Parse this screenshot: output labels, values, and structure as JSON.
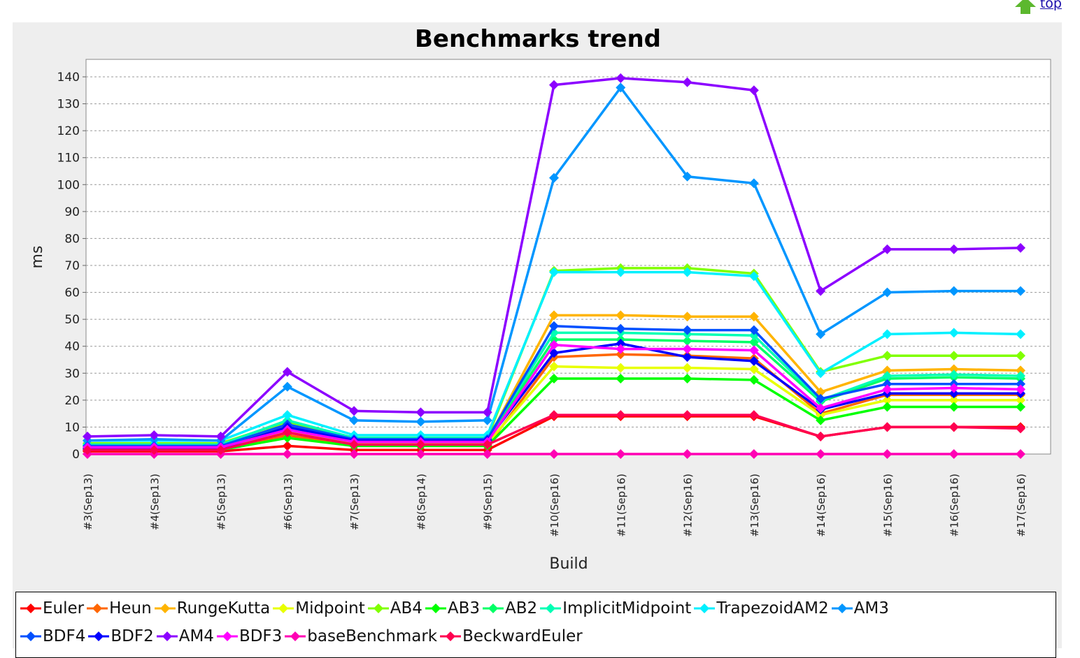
{
  "page": {
    "top_link": "top"
  },
  "chart_data": {
    "type": "line",
    "title": "Benchmarks trend",
    "xlabel": "Build",
    "ylabel": "ms",
    "ylim": [
      0,
      140
    ],
    "yticks": [
      0,
      10,
      20,
      30,
      40,
      50,
      60,
      70,
      80,
      90,
      100,
      110,
      120,
      130,
      140
    ],
    "grid": true,
    "legend_position": "bottom",
    "categories": [
      "#3(Sep13)",
      "#4(Sep13)",
      "#5(Sep13)",
      "#6(Sep13)",
      "#7(Sep13)",
      "#8(Sep14)",
      "#9(Sep15)",
      "#10(Sep16)",
      "#11(Sep16)",
      "#12(Sep16)",
      "#13(Sep16)",
      "#14(Sep16)",
      "#15(Sep16)",
      "#16(Sep16)",
      "#17(Sep16)"
    ],
    "series": [
      {
        "name": "Euler",
        "color": "#ff0000",
        "values": [
          1,
          1,
          1,
          3,
          1.5,
          1.5,
          1.5,
          14,
          14,
          14,
          14,
          6.5,
          10,
          10,
          10
        ]
      },
      {
        "name": "Heun",
        "color": "#ff6600",
        "values": [
          1.5,
          1.5,
          1.5,
          7,
          3,
          3,
          3,
          36,
          37,
          36.5,
          35.5,
          15,
          22,
          22,
          22
        ]
      },
      {
        "name": "RungeKutta",
        "color": "#ffb400",
        "values": [
          2.5,
          2.5,
          2.5,
          10,
          5,
          5,
          5,
          51.5,
          51.5,
          51,
          51,
          23,
          31,
          31.5,
          31
        ]
      },
      {
        "name": "Midpoint",
        "color": "#e8ff00",
        "values": [
          2,
          2,
          2,
          9,
          4,
          4,
          4,
          32.5,
          32,
          32,
          31.5,
          14.5,
          20,
          20,
          20
        ]
      },
      {
        "name": "AB4",
        "color": "#80ff00",
        "values": [
          4,
          4,
          4,
          12,
          6,
          6,
          6,
          68,
          69,
          69,
          67,
          30.5,
          36.5,
          36.5,
          36.5
        ]
      },
      {
        "name": "AB3",
        "color": "#00ff00",
        "values": [
          1.5,
          1.5,
          1.5,
          6,
          3,
          3,
          3,
          28,
          28,
          28,
          27.5,
          12.5,
          17.5,
          17.5,
          17.5
        ]
      },
      {
        "name": "AB2",
        "color": "#00ff66",
        "values": [
          3,
          3,
          3,
          11,
          5.5,
          5.5,
          5.5,
          42.5,
          42.5,
          42,
          41.5,
          19.5,
          28,
          28.5,
          28
        ]
      },
      {
        "name": "ImplicitMidpoint",
        "color": "#00ffb4",
        "values": [
          3.5,
          3.5,
          3.5,
          12.5,
          6,
          6,
          6,
          45,
          45,
          44.5,
          44,
          20,
          29,
          29.5,
          29
        ]
      },
      {
        "name": "TrapezoidAM2",
        "color": "#00f0ff",
        "values": [
          5,
          5,
          5,
          14.5,
          7,
          7,
          7,
          67.5,
          67.5,
          67.5,
          66,
          30,
          44.5,
          45,
          44.5
        ]
      },
      {
        "name": "AM3",
        "color": "#0096ff",
        "values": [
          5,
          5.5,
          5,
          25,
          12.5,
          12,
          12.5,
          102.5,
          136,
          103,
          100.5,
          44.5,
          60,
          60.5,
          60.5
        ]
      },
      {
        "name": "BDF4",
        "color": "#0050ff",
        "values": [
          3,
          3,
          3,
          11,
          5.5,
          5.5,
          5.5,
          47.5,
          46.5,
          46,
          46,
          20.5,
          26,
          26,
          26
        ]
      },
      {
        "name": "BDF2",
        "color": "#0000ff",
        "values": [
          2,
          2,
          2,
          10,
          5,
          5,
          5,
          37.5,
          41,
          36,
          34.5,
          16.5,
          22.5,
          22.5,
          22.5
        ]
      },
      {
        "name": "AM4",
        "color": "#8c00ff",
        "values": [
          6.5,
          7,
          6.5,
          30.5,
          16,
          15.5,
          15.5,
          137,
          139.5,
          138,
          135,
          60.5,
          76,
          76,
          76.5
        ]
      },
      {
        "name": "BDF3",
        "color": "#ff00ff",
        "values": [
          2.5,
          2.5,
          2.5,
          9,
          4.5,
          4.5,
          4.5,
          40.5,
          39,
          39,
          38.5,
          17,
          24,
          24.5,
          24
        ]
      },
      {
        "name": "baseBenchmark",
        "color": "#ff00b4",
        "values": [
          0,
          0,
          0,
          0,
          0,
          0,
          0,
          0,
          0,
          0,
          0,
          0,
          0,
          0,
          0
        ]
      },
      {
        "name": "BeckwardEuler",
        "color": "#ff0050",
        "values": [
          1.5,
          1.5,
          1.5,
          8,
          3.5,
          3.5,
          3.5,
          14.5,
          14.5,
          14.5,
          14.5,
          6.5,
          10,
          10,
          9.5
        ]
      }
    ]
  }
}
